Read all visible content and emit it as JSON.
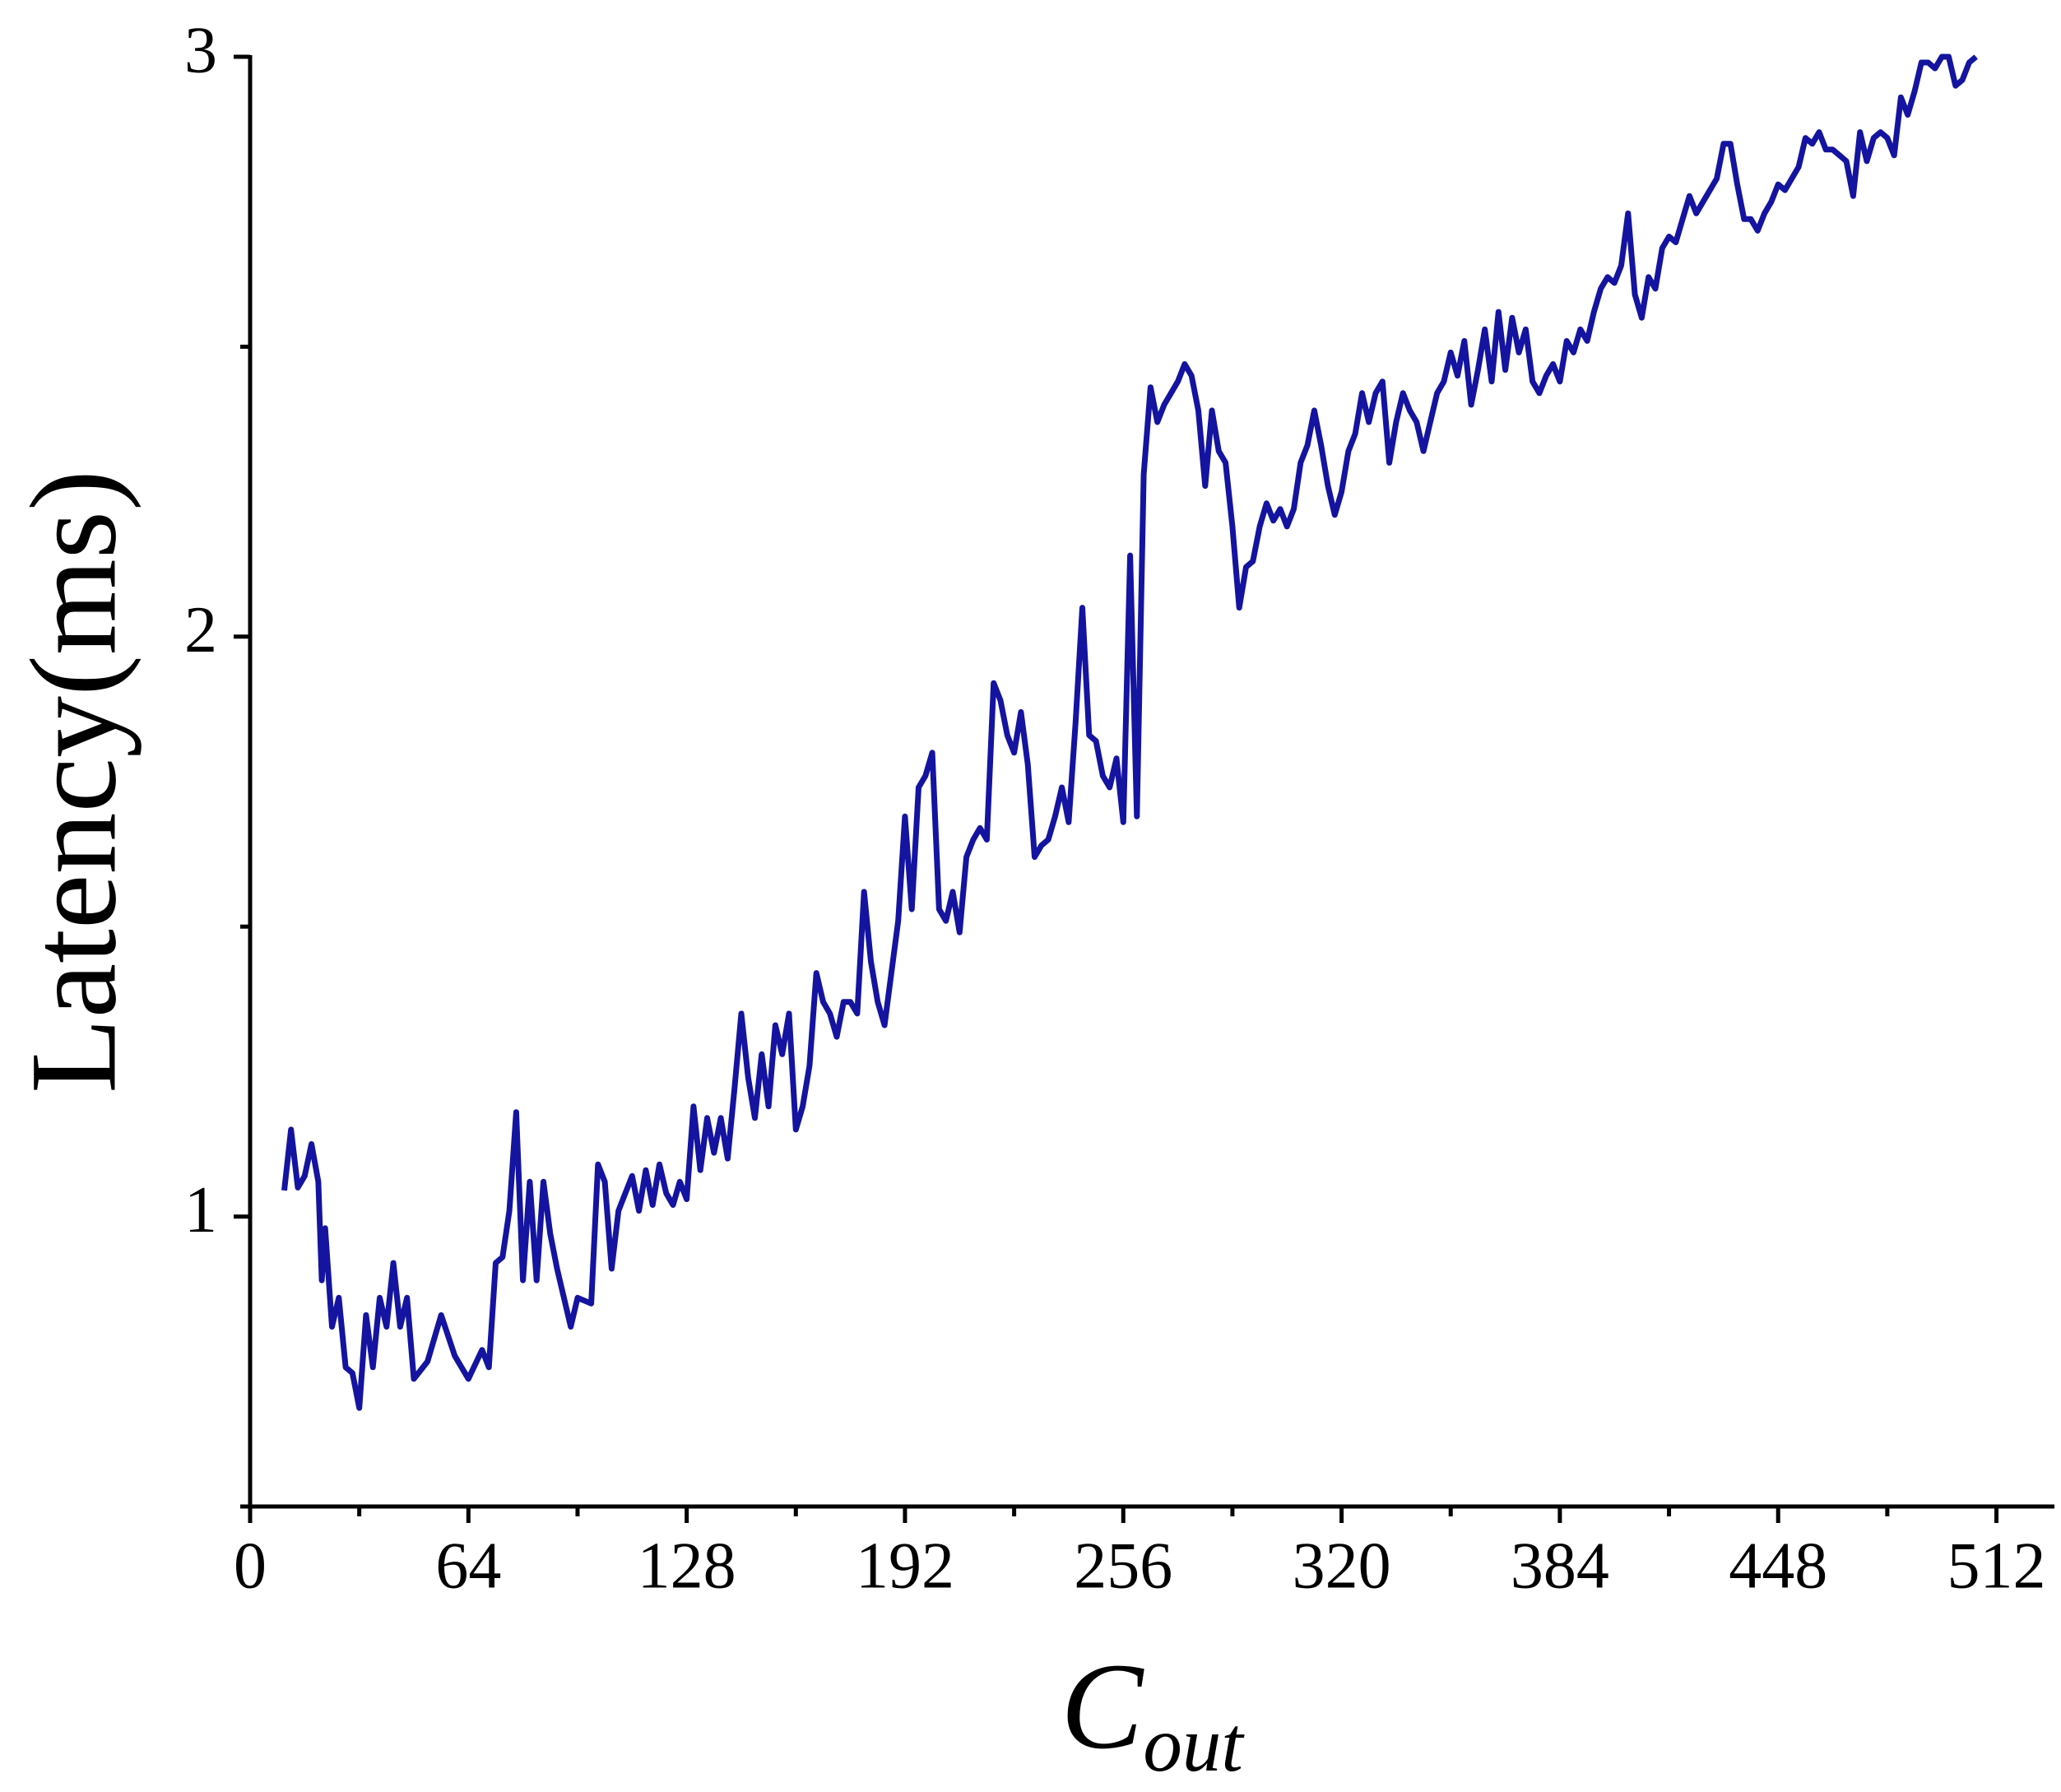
{
  "chart_data": {
    "type": "line",
    "ylabel": "Latency(ms)",
    "xlabel": {
      "main": "C",
      "subscript": "out"
    },
    "color": "#1414a0",
    "xlim": [
      0,
      529
    ],
    "ylim": [
      0.5,
      3
    ],
    "xticks": [
      0,
      64,
      128,
      192,
      256,
      320,
      384,
      448,
      512
    ],
    "xminorticks": [
      32,
      96,
      160,
      224,
      288,
      352,
      416,
      480
    ],
    "yticks": [
      1,
      2,
      3
    ],
    "yminorticks": [
      0.5,
      1.5,
      2.5
    ],
    "x": [
      10,
      12,
      14,
      16,
      18,
      20,
      21,
      22,
      24,
      26,
      28,
      30,
      32,
      34,
      36,
      38,
      40,
      42,
      44,
      46,
      48,
      52,
      56,
      60,
      64,
      68,
      70,
      72,
      74,
      76,
      78,
      80,
      82,
      84,
      86,
      88,
      90,
      94,
      96,
      100,
      102,
      104,
      106,
      108,
      110,
      112,
      114,
      116,
      118,
      120,
      122,
      124,
      126,
      128,
      130,
      132,
      134,
      136,
      138,
      140,
      142,
      144,
      146,
      148,
      150,
      152,
      154,
      156,
      158,
      160,
      162,
      164,
      166,
      168,
      170,
      172,
      174,
      176,
      178,
      180,
      182,
      184,
      186,
      188,
      190,
      192,
      194,
      196,
      198,
      200,
      202,
      204,
      206,
      208,
      210,
      212,
      214,
      216,
      218,
      220,
      222,
      224,
      226,
      228,
      230,
      232,
      234,
      236,
      238,
      240,
      242,
      244,
      246,
      248,
      250,
      252,
      254,
      256,
      258,
      260,
      262,
      264,
      266,
      268,
      270,
      272,
      274,
      276,
      278,
      280,
      282,
      284,
      286,
      288,
      290,
      292,
      294,
      296,
      298,
      300,
      302,
      304,
      306,
      308,
      310,
      312,
      314,
      316,
      318,
      320,
      322,
      324,
      326,
      328,
      330,
      332,
      334,
      336,
      338,
      340,
      342,
      344,
      346,
      348,
      350,
      352,
      354,
      356,
      358,
      360,
      362,
      364,
      366,
      368,
      370,
      372,
      374,
      376,
      378,
      380,
      382,
      384,
      386,
      388,
      390,
      392,
      394,
      396,
      398,
      400,
      402,
      404,
      406,
      408,
      410,
      412,
      414,
      416,
      418,
      420,
      422,
      424,
      426,
      428,
      430,
      432,
      434,
      436,
      438,
      440,
      442,
      444,
      446,
      448,
      450,
      452,
      454,
      456,
      458,
      460,
      462,
      464,
      466,
      468,
      470,
      472,
      474,
      476,
      478,
      480,
      482,
      484,
      486,
      488,
      490,
      492,
      494,
      496,
      498,
      500,
      502,
      504,
      506
    ],
    "values": [
      1.045,
      1.15,
      1.05,
      1.07,
      1.125,
      1.06,
      0.89,
      0.98,
      0.81,
      0.86,
      0.74,
      0.73,
      0.67,
      0.83,
      0.74,
      0.86,
      0.81,
      0.92,
      0.81,
      0.86,
      0.72,
      0.75,
      0.83,
      0.76,
      0.72,
      0.77,
      0.74,
      0.92,
      0.93,
      1.01,
      1.18,
      0.89,
      1.06,
      0.89,
      1.06,
      0.97,
      0.91,
      0.81,
      0.86,
      0.85,
      1.09,
      1.06,
      0.91,
      1.01,
      1.04,
      1.07,
      1.01,
      1.08,
      1.02,
      1.09,
      1.04,
      1.02,
      1.06,
      1.03,
      1.19,
      1.08,
      1.17,
      1.11,
      1.17,
      1.1,
      1.22,
      1.35,
      1.24,
      1.17,
      1.28,
      1.19,
      1.33,
      1.28,
      1.35,
      1.15,
      1.19,
      1.26,
      1.42,
      1.37,
      1.35,
      1.31,
      1.37,
      1.37,
      1.35,
      1.56,
      1.44,
      1.37,
      1.33,
      1.42,
      1.51,
      1.69,
      1.53,
      1.74,
      1.76,
      1.8,
      1.53,
      1.51,
      1.56,
      1.49,
      1.62,
      1.65,
      1.67,
      1.65,
      1.92,
      1.89,
      1.83,
      1.8,
      1.87,
      1.78,
      1.62,
      1.64,
      1.65,
      1.69,
      1.74,
      1.68,
      1.85,
      2.05,
      1.83,
      1.82,
      1.76,
      1.74,
      1.79,
      1.68,
      2.14,
      1.69,
      2.28,
      2.43,
      2.37,
      2.4,
      2.42,
      2.44,
      2.47,
      2.45,
      2.39,
      2.26,
      2.39,
      2.32,
      2.3,
      2.19,
      2.05,
      2.12,
      2.13,
      2.19,
      2.23,
      2.2,
      2.22,
      2.19,
      2.22,
      2.3,
      2.33,
      2.39,
      2.33,
      2.26,
      2.21,
      2.25,
      2.32,
      2.35,
      2.42,
      2.37,
      2.42,
      2.44,
      2.3,
      2.37,
      2.42,
      2.39,
      2.37,
      2.32,
      2.37,
      2.42,
      2.44,
      2.49,
      2.45,
      2.51,
      2.4,
      2.46,
      2.53,
      2.44,
      2.56,
      2.46,
      2.55,
      2.49,
      2.53,
      2.44,
      2.42,
      2.45,
      2.47,
      2.44,
      2.51,
      2.49,
      2.53,
      2.51,
      2.56,
      2.6,
      2.62,
      2.61,
      2.64,
      2.73,
      2.59,
      2.55,
      2.62,
      2.6,
      2.67,
      2.69,
      2.68,
      2.72,
      2.76,
      2.73,
      2.75,
      2.77,
      2.79,
      2.85,
      2.85,
      2.78,
      2.72,
      2.72,
      2.7,
      2.73,
      2.75,
      2.78,
      2.77,
      2.79,
      2.81,
      2.86,
      2.85,
      2.87,
      2.84,
      2.84,
      2.83,
      2.82,
      2.76,
      2.87,
      2.82,
      2.86,
      2.87,
      2.86,
      2.83,
      2.93,
      2.9,
      2.94,
      2.99,
      2.99,
      2.98,
      3.0,
      3.0,
      2.95,
      2.96,
      2.99,
      3.0
    ]
  }
}
